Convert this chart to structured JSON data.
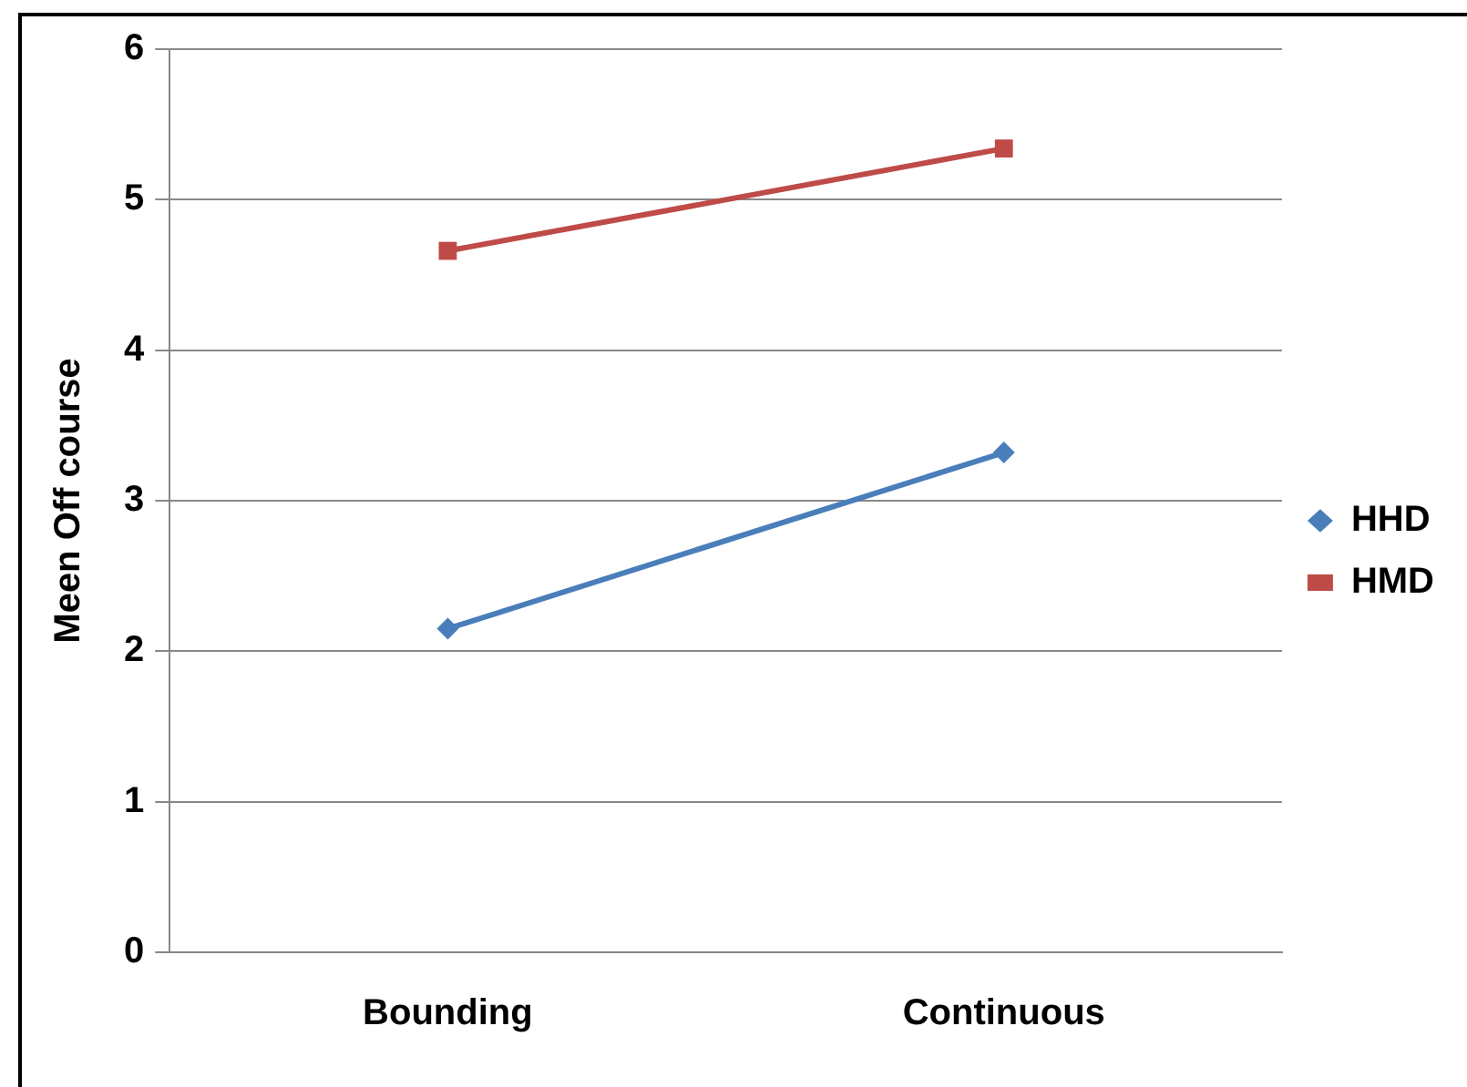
{
  "chart_data": {
    "type": "line",
    "ylabel": "Meen Off course",
    "categories": [
      "Bounding",
      "Continuous"
    ],
    "series": [
      {
        "name": "HHD",
        "color": "#4a7ebb",
        "values": [
          2.15,
          3.32
        ],
        "marker": "diamond"
      },
      {
        "name": "HMD",
        "color": "#be4b48",
        "values": [
          4.66,
          5.34
        ],
        "marker": "square"
      }
    ],
    "ylim": [
      0,
      6
    ],
    "yticks": [
      0,
      1,
      2,
      3,
      4,
      5,
      6
    ],
    "grid": "y",
    "legend": "right",
    "line_style": "solid"
  }
}
